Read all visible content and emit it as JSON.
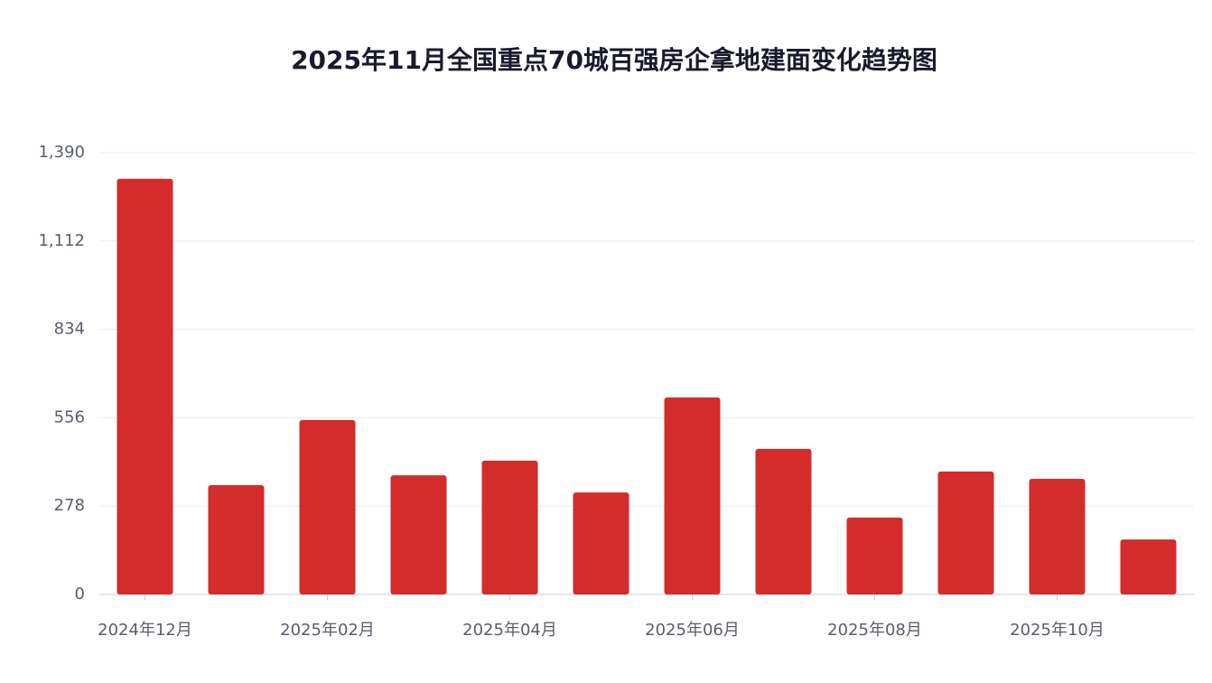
{
  "chart_data": {
    "type": "bar",
    "title": "2025年11月全国重点70城百强房企拿地建面变化趋势图",
    "categories": [
      "2024年12月",
      null,
      "2025年02月",
      null,
      "2025年04月",
      null,
      "2025年06月",
      null,
      "2025年08月",
      null,
      "2025年10月",
      null
    ],
    "values": [
      1308,
      344,
      549,
      375,
      421,
      321,
      620,
      458,
      242,
      387,
      364,
      173
    ],
    "color": "#d42b2b",
    "ylim": [
      0,
      1390
    ],
    "yticks": [
      0,
      278,
      556,
      834,
      {
        "value": 1112,
        "label": "1,112"
      },
      {
        "value": 1390,
        "label": "1,390"
      }
    ],
    "grid": true
  }
}
